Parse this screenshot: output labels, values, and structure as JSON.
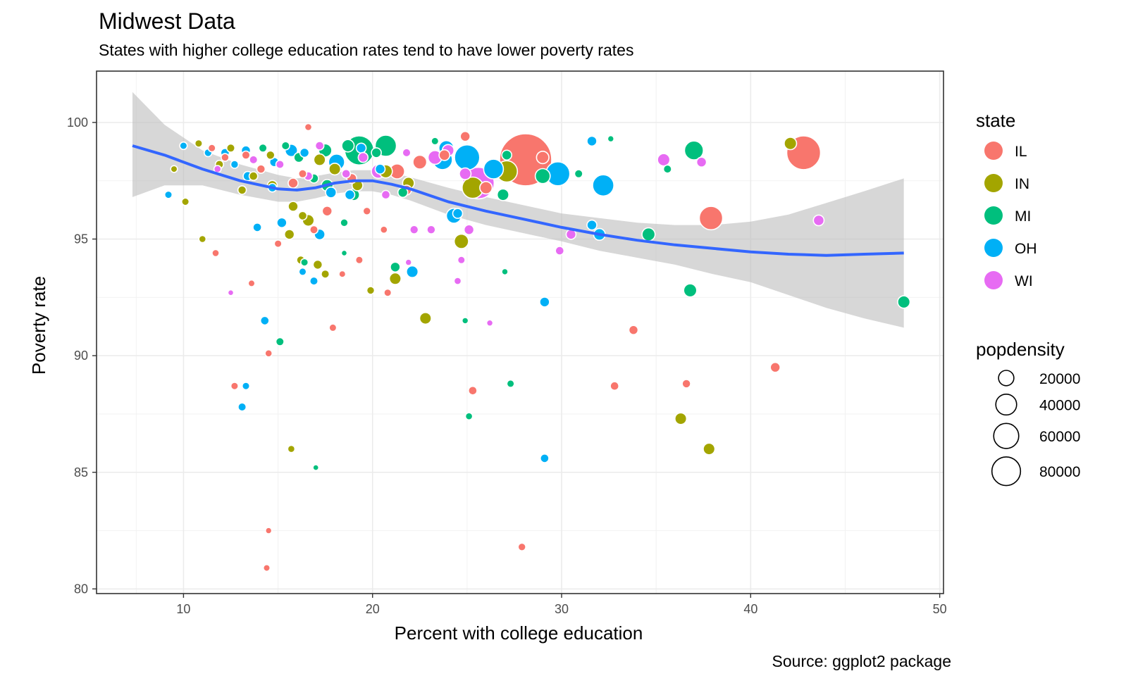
{
  "chart_data": {
    "type": "scatter",
    "title": "Midwest Data",
    "subtitle": "States with higher college education rates tend to have lower poverty rates",
    "caption": "Source: ggplot2 package",
    "xlabel": "Percent with college education",
    "ylabel": "Poverty rate",
    "xlim": [
      5.4,
      50.2
    ],
    "ylim": [
      79.8,
      102.2
    ],
    "x_ticks": [
      10,
      20,
      30,
      40,
      50
    ],
    "y_ticks": [
      80,
      85,
      90,
      95,
      100
    ],
    "grid": true,
    "legend_position": "right",
    "colors": {
      "IL": "#F8766D",
      "IN": "#A3A500",
      "MI": "#00BF7D",
      "OH": "#00B0F6",
      "WI": "#E76BF3"
    },
    "legend_state": {
      "title": "state",
      "entries": [
        "IL",
        "IN",
        "MI",
        "OH",
        "WI"
      ]
    },
    "legend_size": {
      "title": "popdensity",
      "entries": [
        {
          "label": "20000",
          "value": 20000
        },
        {
          "label": "40000",
          "value": 40000
        },
        {
          "label": "60000",
          "value": 60000
        },
        {
          "label": "80000",
          "value": 80000
        }
      ]
    },
    "smooth": {
      "x": [
        7.3,
        9,
        11,
        13,
        15,
        16,
        17,
        18,
        19,
        20,
        21,
        22,
        24,
        26,
        28,
        30,
        32,
        34,
        36,
        38,
        40,
        42,
        44,
        46,
        48.1
      ],
      "y": [
        99.0,
        98.6,
        98.0,
        97.5,
        97.15,
        97.1,
        97.2,
        97.4,
        97.5,
        97.5,
        97.35,
        97.15,
        96.6,
        96.2,
        95.85,
        95.5,
        95.2,
        94.95,
        94.75,
        94.6,
        94.45,
        94.35,
        94.3,
        94.35,
        94.4
      ],
      "upper": [
        101.3,
        99.9,
        98.8,
        98.2,
        97.75,
        97.6,
        97.7,
        97.85,
        97.95,
        97.95,
        97.85,
        97.65,
        97.2,
        96.8,
        96.45,
        96.1,
        95.9,
        95.7,
        95.6,
        95.6,
        95.75,
        96.05,
        96.55,
        97.05,
        97.6
      ],
      "lower": [
        96.8,
        97.3,
        97.3,
        96.9,
        96.6,
        96.6,
        96.75,
        96.95,
        97.05,
        97.05,
        96.9,
        96.65,
        96.05,
        95.6,
        95.25,
        94.9,
        94.5,
        94.2,
        93.9,
        93.5,
        93.15,
        92.6,
        92.05,
        91.6,
        91.2
      ]
    },
    "points": [
      {
        "state": "IL",
        "x": 28.1,
        "y": 98.4,
        "pop": 90000
      },
      {
        "state": "IL",
        "x": 42.8,
        "y": 98.7,
        "pop": 35000
      },
      {
        "state": "IL",
        "x": 37.9,
        "y": 95.9,
        "pop": 15000
      },
      {
        "state": "IL",
        "x": 21.3,
        "y": 97.9,
        "pop": 5000
      },
      {
        "state": "IL",
        "x": 24.9,
        "y": 99.4,
        "pop": 1500
      },
      {
        "state": "IL",
        "x": 16.6,
        "y": 99.8,
        "pop": 500
      },
      {
        "state": "IL",
        "x": 29.0,
        "y": 98.5,
        "pop": 3000
      },
      {
        "state": "IL",
        "x": 17.6,
        "y": 96.2,
        "pop": 1500
      },
      {
        "state": "IL",
        "x": 41.3,
        "y": 89.5,
        "pop": 1500
      },
      {
        "state": "IL",
        "x": 33.8,
        "y": 91.1,
        "pop": 1200
      },
      {
        "state": "IL",
        "x": 32.8,
        "y": 88.7,
        "pop": 1000
      },
      {
        "state": "IL",
        "x": 36.6,
        "y": 88.8,
        "pop": 900
      },
      {
        "state": "IL",
        "x": 25.3,
        "y": 88.5,
        "pop": 1000
      },
      {
        "state": "IL",
        "x": 27.9,
        "y": 81.8,
        "pop": 700
      },
      {
        "state": "IL",
        "x": 14.5,
        "y": 82.5,
        "pop": 300
      },
      {
        "state": "IL",
        "x": 14.4,
        "y": 80.9,
        "pop": 400
      },
      {
        "state": "IL",
        "x": 12.7,
        "y": 88.7,
        "pop": 600
      },
      {
        "state": "IL",
        "x": 14.5,
        "y": 90.1,
        "pop": 500
      },
      {
        "state": "IL",
        "x": 17.9,
        "y": 91.2,
        "pop": 600
      },
      {
        "state": "IL",
        "x": 11.7,
        "y": 94.4,
        "pop": 500
      },
      {
        "state": "IL",
        "x": 13.6,
        "y": 93.1,
        "pop": 400
      },
      {
        "state": "IL",
        "x": 18.4,
        "y": 93.5,
        "pop": 400
      },
      {
        "state": "IL",
        "x": 19.3,
        "y": 94.1,
        "pop": 600
      },
      {
        "state": "IL",
        "x": 20.8,
        "y": 92.7,
        "pop": 600
      },
      {
        "state": "IL",
        "x": 15.0,
        "y": 94.8,
        "pop": 600
      },
      {
        "state": "IL",
        "x": 16.9,
        "y": 95.4,
        "pop": 800
      },
      {
        "state": "IL",
        "x": 19.7,
        "y": 96.2,
        "pop": 700
      },
      {
        "state": "IL",
        "x": 20.6,
        "y": 95.4,
        "pop": 500
      },
      {
        "state": "IL",
        "x": 22.5,
        "y": 98.3,
        "pop": 4000
      },
      {
        "state": "IL",
        "x": 23.8,
        "y": 98.6,
        "pop": 2000
      },
      {
        "state": "IL",
        "x": 26.0,
        "y": 97.2,
        "pop": 3000
      },
      {
        "state": "IL",
        "x": 15.8,
        "y": 97.4,
        "pop": 1500
      },
      {
        "state": "IL",
        "x": 13.3,
        "y": 98.6,
        "pop": 800
      },
      {
        "state": "IL",
        "x": 11.5,
        "y": 98.9,
        "pop": 600
      },
      {
        "state": "IL",
        "x": 12.2,
        "y": 98.5,
        "pop": 700
      },
      {
        "state": "IL",
        "x": 14.1,
        "y": 98.0,
        "pop": 900
      },
      {
        "state": "IL",
        "x": 18.9,
        "y": 97.6,
        "pop": 1500
      },
      {
        "state": "IL",
        "x": 21.8,
        "y": 97.1,
        "pop": 1500
      },
      {
        "state": "IL",
        "x": 16.3,
        "y": 97.8,
        "pop": 800
      },
      {
        "state": "IN",
        "x": 42.1,
        "y": 99.1,
        "pop": 3000
      },
      {
        "state": "IN",
        "x": 27.1,
        "y": 97.9,
        "pop": 12000
      },
      {
        "state": "IN",
        "x": 25.3,
        "y": 97.2,
        "pop": 12000
      },
      {
        "state": "IN",
        "x": 36.3,
        "y": 87.3,
        "pop": 2500
      },
      {
        "state": "IN",
        "x": 37.8,
        "y": 86.0,
        "pop": 2500
      },
      {
        "state": "IN",
        "x": 24.7,
        "y": 94.9,
        "pop": 4500
      },
      {
        "state": "IN",
        "x": 22.8,
        "y": 91.6,
        "pop": 2500
      },
      {
        "state": "IN",
        "x": 21.2,
        "y": 93.3,
        "pop": 2500
      },
      {
        "state": "IN",
        "x": 19.9,
        "y": 92.8,
        "pop": 700
      },
      {
        "state": "IN",
        "x": 17.1,
        "y": 93.9,
        "pop": 1200
      },
      {
        "state": "IN",
        "x": 17.5,
        "y": 93.5,
        "pop": 800
      },
      {
        "state": "IN",
        "x": 16.2,
        "y": 94.1,
        "pop": 800
      },
      {
        "state": "IN",
        "x": 15.7,
        "y": 86.0,
        "pop": 500
      },
      {
        "state": "IN",
        "x": 16.6,
        "y": 95.8,
        "pop": 2500
      },
      {
        "state": "IN",
        "x": 15.6,
        "y": 95.2,
        "pop": 1500
      },
      {
        "state": "IN",
        "x": 11.0,
        "y": 95.0,
        "pop": 500
      },
      {
        "state": "IN",
        "x": 10.1,
        "y": 96.6,
        "pop": 600
      },
      {
        "state": "IN",
        "x": 13.1,
        "y": 97.1,
        "pop": 900
      },
      {
        "state": "IN",
        "x": 14.7,
        "y": 97.3,
        "pop": 1500
      },
      {
        "state": "IN",
        "x": 15.8,
        "y": 96.4,
        "pop": 1500
      },
      {
        "state": "IN",
        "x": 16.3,
        "y": 96.0,
        "pop": 1000
      },
      {
        "state": "IN",
        "x": 17.2,
        "y": 98.4,
        "pop": 2500
      },
      {
        "state": "IN",
        "x": 18.0,
        "y": 98.0,
        "pop": 2500
      },
      {
        "state": "IN",
        "x": 19.2,
        "y": 97.3,
        "pop": 2000
      },
      {
        "state": "IN",
        "x": 20.7,
        "y": 97.9,
        "pop": 3500
      },
      {
        "state": "IN",
        "x": 21.9,
        "y": 97.4,
        "pop": 2500
      },
      {
        "state": "IN",
        "x": 11.9,
        "y": 98.2,
        "pop": 800
      },
      {
        "state": "IN",
        "x": 10.8,
        "y": 99.1,
        "pop": 600
      },
      {
        "state": "IN",
        "x": 9.5,
        "y": 98.0,
        "pop": 400
      },
      {
        "state": "IN",
        "x": 12.5,
        "y": 98.9,
        "pop": 800
      },
      {
        "state": "IN",
        "x": 14.6,
        "y": 98.6,
        "pop": 900
      },
      {
        "state": "IN",
        "x": 13.7,
        "y": 97.7,
        "pop": 1000
      },
      {
        "state": "MI",
        "x": 19.3,
        "y": 98.8,
        "pop": 25000
      },
      {
        "state": "MI",
        "x": 20.7,
        "y": 99.0,
        "pop": 12000
      },
      {
        "state": "MI",
        "x": 37.0,
        "y": 98.8,
        "pop": 9000
      },
      {
        "state": "MI",
        "x": 48.1,
        "y": 92.3,
        "pop": 3000
      },
      {
        "state": "MI",
        "x": 36.8,
        "y": 92.8,
        "pop": 3500
      },
      {
        "state": "MI",
        "x": 34.6,
        "y": 95.2,
        "pop": 3500
      },
      {
        "state": "MI",
        "x": 26.9,
        "y": 96.9,
        "pop": 2500
      },
      {
        "state": "MI",
        "x": 29.0,
        "y": 97.7,
        "pop": 5000
      },
      {
        "state": "MI",
        "x": 30.9,
        "y": 97.8,
        "pop": 800
      },
      {
        "state": "MI",
        "x": 35.6,
        "y": 98.0,
        "pop": 800
      },
      {
        "state": "MI",
        "x": 32.6,
        "y": 99.3,
        "pop": 300
      },
      {
        "state": "MI",
        "x": 23.3,
        "y": 99.2,
        "pop": 600
      },
      {
        "state": "MI",
        "x": 27.1,
        "y": 98.6,
        "pop": 1500
      },
      {
        "state": "MI",
        "x": 21.2,
        "y": 93.8,
        "pop": 1500
      },
      {
        "state": "MI",
        "x": 27.3,
        "y": 88.8,
        "pop": 600
      },
      {
        "state": "MI",
        "x": 25.1,
        "y": 87.4,
        "pop": 500
      },
      {
        "state": "MI",
        "x": 27.0,
        "y": 93.6,
        "pop": 300
      },
      {
        "state": "MI",
        "x": 24.9,
        "y": 91.5,
        "pop": 300
      },
      {
        "state": "MI",
        "x": 15.1,
        "y": 90.6,
        "pop": 800
      },
      {
        "state": "MI",
        "x": 16.4,
        "y": 94.0,
        "pop": 600
      },
      {
        "state": "MI",
        "x": 17.0,
        "y": 85.2,
        "pop": 200
      },
      {
        "state": "MI",
        "x": 18.5,
        "y": 94.4,
        "pop": 200
      },
      {
        "state": "MI",
        "x": 18.5,
        "y": 95.7,
        "pop": 700
      },
      {
        "state": "MI",
        "x": 17.6,
        "y": 97.3,
        "pop": 2500
      },
      {
        "state": "MI",
        "x": 19.0,
        "y": 96.9,
        "pop": 2500
      },
      {
        "state": "MI",
        "x": 17.5,
        "y": 98.8,
        "pop": 3500
      },
      {
        "state": "MI",
        "x": 18.7,
        "y": 99.0,
        "pop": 3000
      },
      {
        "state": "MI",
        "x": 20.2,
        "y": 98.7,
        "pop": 1500
      },
      {
        "state": "MI",
        "x": 16.1,
        "y": 98.5,
        "pop": 1500
      },
      {
        "state": "MI",
        "x": 14.2,
        "y": 98.9,
        "pop": 800
      },
      {
        "state": "MI",
        "x": 21.6,
        "y": 97.0,
        "pop": 1500
      },
      {
        "state": "MI",
        "x": 15.4,
        "y": 99.0,
        "pop": 800
      },
      {
        "state": "MI",
        "x": 16.9,
        "y": 97.6,
        "pop": 1200
      },
      {
        "state": "OH",
        "x": 25.0,
        "y": 98.5,
        "pop": 18000
      },
      {
        "state": "OH",
        "x": 29.8,
        "y": 97.8,
        "pop": 16000
      },
      {
        "state": "OH",
        "x": 32.2,
        "y": 97.3,
        "pop": 12000
      },
      {
        "state": "OH",
        "x": 26.4,
        "y": 98.0,
        "pop": 10000
      },
      {
        "state": "OH",
        "x": 23.7,
        "y": 98.4,
        "pop": 10000
      },
      {
        "state": "OH",
        "x": 23.9,
        "y": 98.9,
        "pop": 5000
      },
      {
        "state": "OH",
        "x": 18.1,
        "y": 98.3,
        "pop": 6000
      },
      {
        "state": "OH",
        "x": 24.3,
        "y": 96.0,
        "pop": 5000
      },
      {
        "state": "OH",
        "x": 24.5,
        "y": 96.1,
        "pop": 1500
      },
      {
        "state": "OH",
        "x": 22.1,
        "y": 93.6,
        "pop": 2500
      },
      {
        "state": "OH",
        "x": 31.6,
        "y": 99.2,
        "pop": 1500
      },
      {
        "state": "OH",
        "x": 31.6,
        "y": 95.6,
        "pop": 1500
      },
      {
        "state": "OH",
        "x": 32.0,
        "y": 95.2,
        "pop": 2500
      },
      {
        "state": "OH",
        "x": 29.1,
        "y": 92.3,
        "pop": 1500
      },
      {
        "state": "OH",
        "x": 29.1,
        "y": 85.6,
        "pop": 1000
      },
      {
        "state": "OH",
        "x": 14.3,
        "y": 91.5,
        "pop": 1000
      },
      {
        "state": "OH",
        "x": 13.3,
        "y": 88.7,
        "pop": 600
      },
      {
        "state": "OH",
        "x": 13.1,
        "y": 87.8,
        "pop": 800
      },
      {
        "state": "OH",
        "x": 16.3,
        "y": 93.6,
        "pop": 600
      },
      {
        "state": "OH",
        "x": 16.9,
        "y": 93.2,
        "pop": 800
      },
      {
        "state": "OH",
        "x": 17.2,
        "y": 95.2,
        "pop": 2000
      },
      {
        "state": "OH",
        "x": 13.9,
        "y": 95.5,
        "pop": 1000
      },
      {
        "state": "OH",
        "x": 9.2,
        "y": 96.9,
        "pop": 600
      },
      {
        "state": "OH",
        "x": 15.2,
        "y": 95.7,
        "pop": 1500
      },
      {
        "state": "OH",
        "x": 15.7,
        "y": 98.8,
        "pop": 3000
      },
      {
        "state": "OH",
        "x": 17.8,
        "y": 97.0,
        "pop": 2000
      },
      {
        "state": "OH",
        "x": 18.8,
        "y": 96.9,
        "pop": 1500
      },
      {
        "state": "OH",
        "x": 19.4,
        "y": 98.9,
        "pop": 1500
      },
      {
        "state": "OH",
        "x": 13.3,
        "y": 98.8,
        "pop": 1200
      },
      {
        "state": "OH",
        "x": 12.2,
        "y": 98.7,
        "pop": 1000
      },
      {
        "state": "OH",
        "x": 11.3,
        "y": 98.7,
        "pop": 700
      },
      {
        "state": "OH",
        "x": 10.0,
        "y": 99.0,
        "pop": 600
      },
      {
        "state": "OH",
        "x": 14.8,
        "y": 98.3,
        "pop": 1200
      },
      {
        "state": "OH",
        "x": 16.4,
        "y": 98.7,
        "pop": 1200
      },
      {
        "state": "OH",
        "x": 20.4,
        "y": 98.0,
        "pop": 1500
      },
      {
        "state": "OH",
        "x": 13.4,
        "y": 97.7,
        "pop": 1200
      },
      {
        "state": "OH",
        "x": 14.7,
        "y": 97.2,
        "pop": 1000
      },
      {
        "state": "OH",
        "x": 12.7,
        "y": 98.2,
        "pop": 700
      },
      {
        "state": "WI",
        "x": 25.6,
        "y": 97.4,
        "pop": 30000
      },
      {
        "state": "WI",
        "x": 35.4,
        "y": 98.4,
        "pop": 3000
      },
      {
        "state": "WI",
        "x": 37.4,
        "y": 98.3,
        "pop": 1500
      },
      {
        "state": "WI",
        "x": 43.6,
        "y": 95.8,
        "pop": 2000
      },
      {
        "state": "WI",
        "x": 30.5,
        "y": 95.2,
        "pop": 1500
      },
      {
        "state": "WI",
        "x": 29.9,
        "y": 94.5,
        "pop": 1000
      },
      {
        "state": "WI",
        "x": 25.1,
        "y": 95.4,
        "pop": 1500
      },
      {
        "state": "WI",
        "x": 24.7,
        "y": 94.1,
        "pop": 600
      },
      {
        "state": "WI",
        "x": 24.5,
        "y": 93.2,
        "pop": 500
      },
      {
        "state": "WI",
        "x": 26.2,
        "y": 91.4,
        "pop": 300
      },
      {
        "state": "WI",
        "x": 23.1,
        "y": 95.4,
        "pop": 900
      },
      {
        "state": "WI",
        "x": 22.2,
        "y": 95.4,
        "pop": 900
      },
      {
        "state": "WI",
        "x": 21.9,
        "y": 94.0,
        "pop": 300
      },
      {
        "state": "WI",
        "x": 20.3,
        "y": 97.9,
        "pop": 4000
      },
      {
        "state": "WI",
        "x": 23.3,
        "y": 98.5,
        "pop": 4000
      },
      {
        "state": "WI",
        "x": 24.0,
        "y": 98.8,
        "pop": 2500
      },
      {
        "state": "WI",
        "x": 24.9,
        "y": 97.8,
        "pop": 2500
      },
      {
        "state": "WI",
        "x": 12.5,
        "y": 92.7,
        "pop": 200
      },
      {
        "state": "WI",
        "x": 19.5,
        "y": 98.5,
        "pop": 1500
      },
      {
        "state": "WI",
        "x": 20.7,
        "y": 96.9,
        "pop": 1000
      },
      {
        "state": "WI",
        "x": 18.6,
        "y": 97.8,
        "pop": 1000
      },
      {
        "state": "WI",
        "x": 16.6,
        "y": 97.7,
        "pop": 1000
      },
      {
        "state": "WI",
        "x": 15.1,
        "y": 98.2,
        "pop": 800
      },
      {
        "state": "WI",
        "x": 13.7,
        "y": 98.4,
        "pop": 800
      },
      {
        "state": "WI",
        "x": 17.2,
        "y": 99.0,
        "pop": 1000
      },
      {
        "state": "WI",
        "x": 21.8,
        "y": 98.7,
        "pop": 800
      },
      {
        "state": "WI",
        "x": 11.8,
        "y": 98.0,
        "pop": 500
      }
    ]
  }
}
